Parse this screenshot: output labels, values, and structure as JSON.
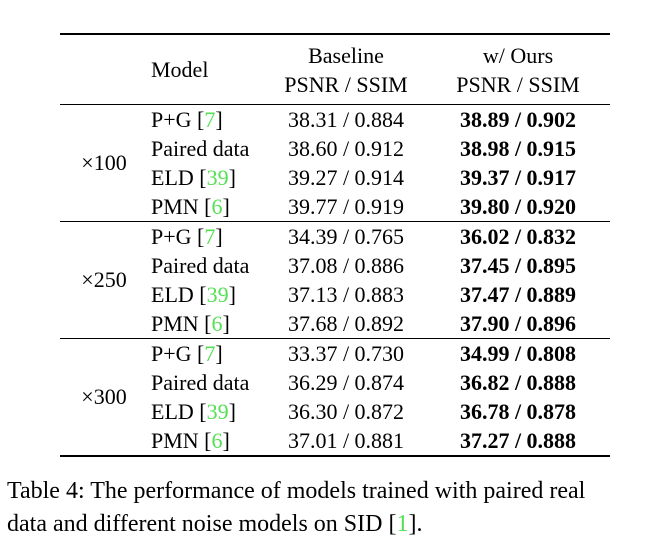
{
  "colors": {
    "citation_green": "#54E054",
    "text": "#000000",
    "background": "#ffffff"
  },
  "table": {
    "header": {
      "model": "Model",
      "baseline_line1": "Baseline",
      "baseline_line2": "PSNR / SSIM",
      "ours_line1": "w/ Ours",
      "ours_line2": "PSNR / SSIM"
    },
    "groups": [
      {
        "ratio": "×100",
        "rows": [
          {
            "model_pre": "P+G [",
            "ref": "7",
            "model_post": "]",
            "baseline": "38.31 / 0.884",
            "ours": "38.89 / 0.902"
          },
          {
            "model_pre": "Paired data",
            "ref": "",
            "model_post": "",
            "baseline": "38.60 / 0.912",
            "ours": "38.98 / 0.915"
          },
          {
            "model_pre": "ELD [",
            "ref": "39",
            "model_post": "]",
            "baseline": "39.27 / 0.914",
            "ours": "39.37 / 0.917"
          },
          {
            "model_pre": "PMN [",
            "ref": "6",
            "model_post": "]",
            "baseline": "39.77 / 0.919",
            "ours": "39.80 / 0.920"
          }
        ]
      },
      {
        "ratio": "×250",
        "rows": [
          {
            "model_pre": "P+G [",
            "ref": "7",
            "model_post": "]",
            "baseline": "34.39 / 0.765",
            "ours": "36.02 / 0.832"
          },
          {
            "model_pre": "Paired data",
            "ref": "",
            "model_post": "",
            "baseline": "37.08 / 0.886",
            "ours": "37.45 / 0.895"
          },
          {
            "model_pre": "ELD [",
            "ref": "39",
            "model_post": "]",
            "baseline": "37.13 / 0.883",
            "ours": "37.47 / 0.889"
          },
          {
            "model_pre": "PMN [",
            "ref": "6",
            "model_post": "]",
            "baseline": "37.68 / 0.892",
            "ours": "37.90 / 0.896"
          }
        ]
      },
      {
        "ratio": "×300",
        "rows": [
          {
            "model_pre": "P+G [",
            "ref": "7",
            "model_post": "]",
            "baseline": "33.37 / 0.730",
            "ours": "34.99 / 0.808"
          },
          {
            "model_pre": "Paired data",
            "ref": "",
            "model_post": "",
            "baseline": "36.29 / 0.874",
            "ours": "36.82 / 0.888"
          },
          {
            "model_pre": "ELD [",
            "ref": "39",
            "model_post": "]",
            "baseline": "36.30 / 0.872",
            "ours": "36.78 / 0.878"
          },
          {
            "model_pre": "PMN [",
            "ref": "6",
            "model_post": "]",
            "baseline": "37.01 / 0.881",
            "ours": "37.27 / 0.888"
          }
        ]
      }
    ]
  },
  "caption": {
    "line1": "Table 4: The performance of models trained with paired real",
    "line2_pre": "data and different noise models on SID [",
    "ref": "1",
    "line2_post": "]."
  }
}
